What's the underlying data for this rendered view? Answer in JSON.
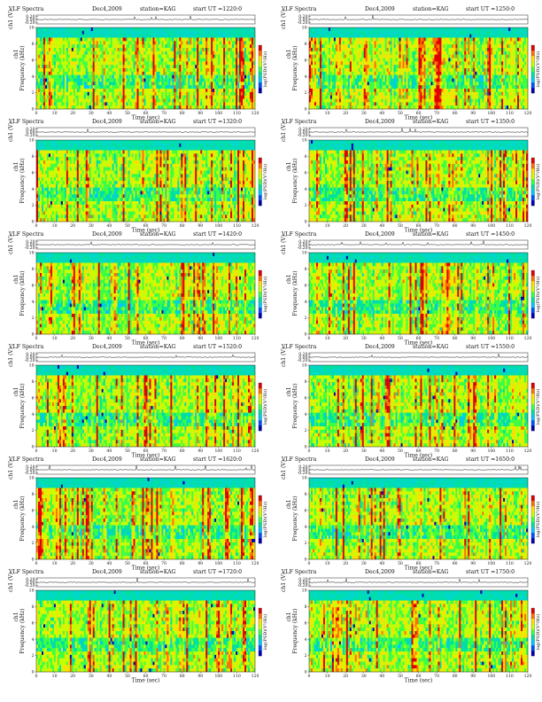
{
  "colors": {
    "colormap": [
      "#0000b0",
      "#0050ff",
      "#00c8ff",
      "#00e0a0",
      "#40ff40",
      "#c8ff00",
      "#ffe000",
      "#ff7000",
      "#e00000"
    ],
    "trace": "#111111"
  },
  "axis_labels": {
    "time_x": "Time (sec)",
    "frequency_y": "Frequency (kHz)",
    "amplitude_y": "(V)",
    "colorbar": "log(PSD)(V²/Hz)"
  },
  "chart_data": [
    {
      "type": "heatmap",
      "title_left": "VLF Spectra",
      "title_date": "Dec4,2009",
      "title_station": "station=KAG",
      "title_start": "start UT =1220:0",
      "channel": "ch1",
      "xlim": [
        0,
        120
      ],
      "ylim": [
        0,
        10
      ],
      "x_ticks": [
        "0",
        "10",
        "20",
        "30",
        "40",
        "50",
        "60",
        "70",
        "80",
        "90",
        "100",
        "110",
        "120"
      ],
      "y_ticks": [
        "0",
        "2",
        "4",
        "6",
        "8",
        "10"
      ],
      "amp_ticks": [
        "0.20",
        "0.00",
        "-0.20"
      ]
    },
    {
      "type": "heatmap",
      "title_left": "VLF Spectra",
      "title_date": "Dec4,2009",
      "title_station": "station=KAG",
      "title_start": "start UT =1250:0",
      "channel": "ch1",
      "xlim": [
        0,
        120
      ],
      "ylim": [
        0,
        10
      ],
      "x_ticks": [
        "0",
        "10",
        "20",
        "30",
        "40",
        "50",
        "60",
        "70",
        "80",
        "90",
        "100",
        "110",
        "120"
      ],
      "y_ticks": [
        "0",
        "2",
        "4",
        "6",
        "8",
        "10"
      ],
      "amp_ticks": [
        "0.20",
        "0.00",
        "-0.20"
      ]
    },
    {
      "type": "heatmap",
      "title_left": "VLF Spectra",
      "title_date": "Dec4,2009",
      "title_station": "station=KAG",
      "title_start": "start UT =1320:0",
      "channel": "ch1",
      "xlim": [
        0,
        120
      ],
      "ylim": [
        0,
        10
      ],
      "x_ticks": [
        "0",
        "10",
        "20",
        "30",
        "40",
        "50",
        "60",
        "70",
        "80",
        "90",
        "100",
        "110",
        "120"
      ],
      "y_ticks": [
        "0",
        "2",
        "4",
        "6",
        "8",
        "10"
      ],
      "amp_ticks": [
        "0.20",
        "0.00",
        "-0.20"
      ]
    },
    {
      "type": "heatmap",
      "title_left": "VLF Spectra",
      "title_date": "Dec4,2009",
      "title_station": "station=KAG",
      "title_start": "start UT =1350:0",
      "channel": "ch1",
      "xlim": [
        0,
        120
      ],
      "ylim": [
        0,
        10
      ],
      "x_ticks": [
        "0",
        "10",
        "20",
        "30",
        "40",
        "50",
        "60",
        "70",
        "80",
        "90",
        "100",
        "110",
        "120"
      ],
      "y_ticks": [
        "0",
        "2",
        "4",
        "6",
        "8",
        "10"
      ],
      "amp_ticks": [
        "0.20",
        "0.00",
        "-0.20"
      ]
    },
    {
      "type": "heatmap",
      "title_left": "VLF Spectra",
      "title_date": "Dec4,2009",
      "title_station": "station=KAG",
      "title_start": "start UT =1420:0",
      "channel": "ch1",
      "xlim": [
        0,
        120
      ],
      "ylim": [
        0,
        10
      ],
      "x_ticks": [
        "0",
        "10",
        "20",
        "30",
        "40",
        "50",
        "60",
        "70",
        "80",
        "90",
        "100",
        "110",
        "120"
      ],
      "y_ticks": [
        "0",
        "2",
        "4",
        "6",
        "8",
        "10"
      ],
      "amp_ticks": [
        "0.20",
        "0.00",
        "-0.20"
      ]
    },
    {
      "type": "heatmap",
      "title_left": "VLF Spectra",
      "title_date": "Dec4,2009",
      "title_station": "station=KAG",
      "title_start": "start UT =1450:0",
      "channel": "ch1",
      "xlim": [
        0,
        120
      ],
      "ylim": [
        0,
        10
      ],
      "x_ticks": [
        "0",
        "10",
        "20",
        "30",
        "40",
        "50",
        "60",
        "70",
        "80",
        "90",
        "100",
        "110",
        "120"
      ],
      "y_ticks": [
        "0",
        "2",
        "4",
        "6",
        "8",
        "10"
      ],
      "amp_ticks": [
        "0.20",
        "0.00",
        "-0.20"
      ]
    },
    {
      "type": "heatmap",
      "title_left": "VLF Spectra",
      "title_date": "Dec4,2009",
      "title_station": "station=KAG",
      "title_start": "start UT =1520:0",
      "channel": "ch1",
      "xlim": [
        0,
        120
      ],
      "ylim": [
        0,
        10
      ],
      "x_ticks": [
        "0",
        "10",
        "20",
        "30",
        "40",
        "50",
        "60",
        "70",
        "80",
        "90",
        "100",
        "110",
        "120"
      ],
      "y_ticks": [
        "0",
        "2",
        "4",
        "6",
        "8",
        "10"
      ],
      "amp_ticks": [
        "0.20",
        "0.00",
        "-0.20"
      ]
    },
    {
      "type": "heatmap",
      "title_left": "VLF Spectra",
      "title_date": "Dec4,2009",
      "title_station": "station=KAG",
      "title_start": "start UT =1550:0",
      "channel": "ch1",
      "xlim": [
        0,
        120
      ],
      "ylim": [
        0,
        10
      ],
      "x_ticks": [
        "0",
        "10",
        "20",
        "30",
        "40",
        "50",
        "60",
        "70",
        "80",
        "90",
        "100",
        "110",
        "120"
      ],
      "y_ticks": [
        "0",
        "2",
        "4",
        "6",
        "8",
        "10"
      ],
      "amp_ticks": [
        "0.20",
        "0.00",
        "-0.20"
      ]
    },
    {
      "type": "heatmap",
      "title_left": "VLF Spectra",
      "title_date": "Dec4,2009",
      "title_station": "station=KAG",
      "title_start": "start UT =1620:0",
      "channel": "ch1",
      "xlim": [
        0,
        120
      ],
      "ylim": [
        0,
        10
      ],
      "x_ticks": [
        "0",
        "10",
        "20",
        "30",
        "40",
        "50",
        "60",
        "70",
        "80",
        "90",
        "100",
        "110",
        "120"
      ],
      "y_ticks": [
        "0",
        "2",
        "4",
        "6",
        "8",
        "10"
      ],
      "amp_ticks": [
        "0.20",
        "0.00",
        "-0.20"
      ]
    },
    {
      "type": "heatmap",
      "title_left": "VLF Spectra",
      "title_date": "Dec4,2009",
      "title_station": "station=KAG",
      "title_start": "start UT =1650:0",
      "channel": "ch1",
      "xlim": [
        0,
        120
      ],
      "ylim": [
        0,
        10
      ],
      "x_ticks": [
        "0",
        "10",
        "20",
        "30",
        "40",
        "50",
        "60",
        "70",
        "80",
        "90",
        "100",
        "110",
        "120"
      ],
      "y_ticks": [
        "0",
        "2",
        "4",
        "6",
        "8",
        "10"
      ],
      "amp_ticks": [
        "0.20",
        "0.00",
        "-0.20"
      ]
    },
    {
      "type": "heatmap",
      "title_left": "VLF Spectra",
      "title_date": "Dec4,2009",
      "title_station": "station=KAG",
      "title_start": "start UT =1720:0",
      "channel": "ch1",
      "xlim": [
        0,
        120
      ],
      "ylim": [
        0,
        10
      ],
      "x_ticks": [
        "0",
        "10",
        "20",
        "30",
        "40",
        "50",
        "60",
        "70",
        "80",
        "90",
        "100",
        "110",
        "120"
      ],
      "y_ticks": [
        "0",
        "2",
        "4",
        "6",
        "8",
        "10"
      ],
      "amp_ticks": [
        "0.20",
        "0.00",
        "-0.20"
      ]
    },
    {
      "type": "heatmap",
      "title_left": "VLF Spectra",
      "title_date": "Dec4,2009",
      "title_station": "station=KAG",
      "title_start": "start UT =1750:0",
      "channel": "ch1",
      "xlim": [
        0,
        120
      ],
      "ylim": [
        0,
        10
      ],
      "x_ticks": [
        "0",
        "10",
        "20",
        "30",
        "40",
        "50",
        "60",
        "70",
        "80",
        "90",
        "100",
        "110",
        "120"
      ],
      "y_ticks": [
        "0",
        "2",
        "4",
        "6",
        "8",
        "10"
      ],
      "amp_ticks": [
        "0.20",
        "0.00",
        "-0.20"
      ]
    }
  ]
}
